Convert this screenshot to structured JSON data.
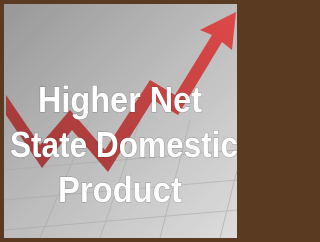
{
  "caption": {
    "lines": [
      "Higher Net",
      "State Domestic",
      "Product"
    ]
  }
}
